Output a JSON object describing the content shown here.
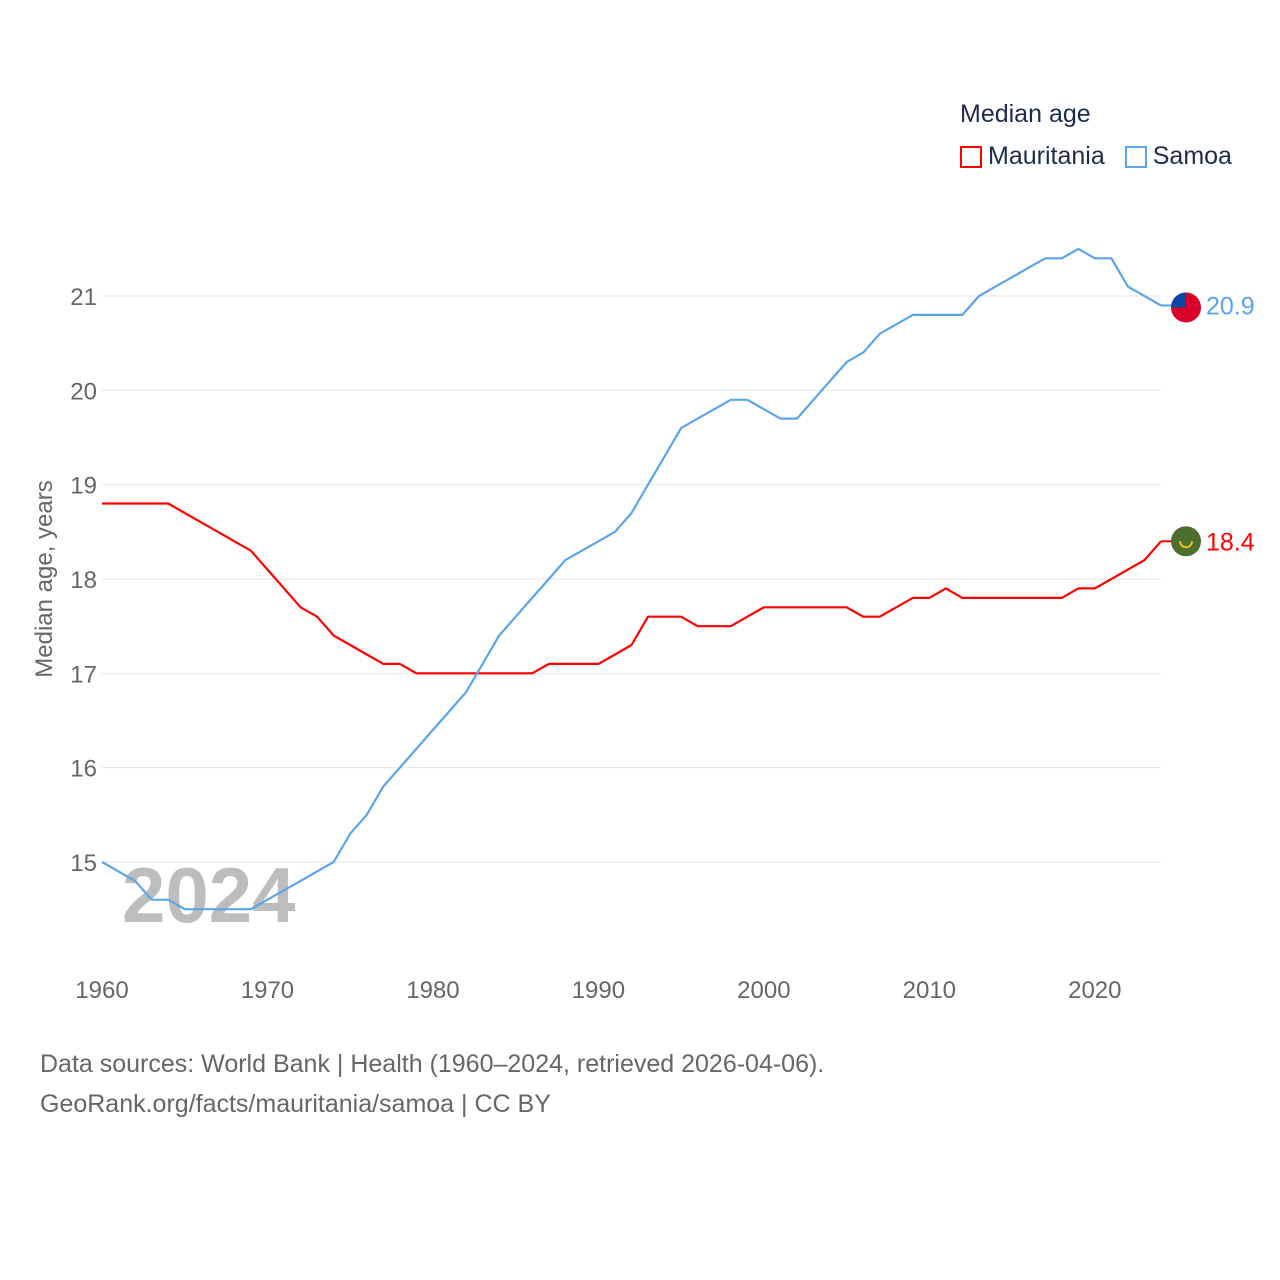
{
  "chart_data": {
    "type": "line",
    "title": "Median age",
    "ylabel": "Median age, years",
    "xlabel": "",
    "xlim": [
      1960,
      2024
    ],
    "ylim": [
      14.3,
      21.9
    ],
    "yticks": [
      15,
      16,
      17,
      18,
      19,
      20,
      21
    ],
    "xticks": [
      1960,
      1970,
      1980,
      1990,
      2000,
      2010,
      2020
    ],
    "grid": true,
    "legend_placement": "top-right",
    "year_watermark": "2024",
    "x": [
      1960,
      1961,
      1962,
      1963,
      1964,
      1965,
      1966,
      1967,
      1968,
      1969,
      1970,
      1971,
      1972,
      1973,
      1974,
      1975,
      1976,
      1977,
      1978,
      1979,
      1980,
      1981,
      1982,
      1983,
      1984,
      1985,
      1986,
      1987,
      1988,
      1989,
      1990,
      1991,
      1992,
      1993,
      1994,
      1995,
      1996,
      1997,
      1998,
      1999,
      2000,
      2001,
      2002,
      2003,
      2004,
      2005,
      2006,
      2007,
      2008,
      2009,
      2010,
      2011,
      2012,
      2013,
      2014,
      2015,
      2016,
      2017,
      2018,
      2019,
      2020,
      2021,
      2022,
      2023,
      2024
    ],
    "series": [
      {
        "name": "Mauritania",
        "color": "#ff0000",
        "end_label": "18.4",
        "flag": "mauritania-flag",
        "values": [
          18.8,
          18.8,
          18.8,
          18.8,
          18.8,
          18.7,
          18.6,
          18.5,
          18.4,
          18.3,
          18.1,
          17.9,
          17.7,
          17.6,
          17.4,
          17.3,
          17.2,
          17.1,
          17.1,
          17.0,
          17.0,
          17.0,
          17.0,
          17.0,
          17.0,
          17.0,
          17.0,
          17.1,
          17.1,
          17.1,
          17.1,
          17.2,
          17.3,
          17.6,
          17.6,
          17.6,
          17.5,
          17.5,
          17.5,
          17.6,
          17.7,
          17.7,
          17.7,
          17.7,
          17.7,
          17.7,
          17.6,
          17.6,
          17.7,
          17.8,
          17.8,
          17.9,
          17.8,
          17.8,
          17.8,
          17.8,
          17.8,
          17.8,
          17.8,
          17.9,
          17.9,
          18.0,
          18.1,
          18.2,
          18.4
        ]
      },
      {
        "name": "Samoa",
        "color": "#5ba4ec",
        "end_label": "20.9",
        "flag": "samoa-flag",
        "values": [
          15.0,
          14.9,
          14.8,
          14.6,
          14.6,
          14.5,
          14.5,
          14.5,
          14.5,
          14.5,
          14.6,
          14.7,
          14.8,
          14.9,
          15.0,
          15.3,
          15.5,
          15.8,
          16.0,
          16.2,
          16.4,
          16.6,
          16.8,
          17.1,
          17.4,
          17.6,
          17.8,
          18.0,
          18.2,
          18.3,
          18.4,
          18.5,
          18.7,
          19.0,
          19.3,
          19.6,
          19.7,
          19.8,
          19.9,
          19.9,
          19.8,
          19.7,
          19.7,
          19.9,
          20.1,
          20.3,
          20.4,
          20.6,
          20.7,
          20.8,
          20.8,
          20.8,
          20.8,
          21.0,
          21.1,
          21.2,
          21.3,
          21.4,
          21.4,
          21.5,
          21.4,
          21.4,
          21.1,
          21.0,
          20.9
        ]
      }
    ]
  },
  "footer": {
    "line1": "Data sources: World Bank | Health (1960–2024, retrieved 2026-04-06).",
    "line2": "GeoRank.org/facts/mauritania/samoa | CC BY"
  }
}
